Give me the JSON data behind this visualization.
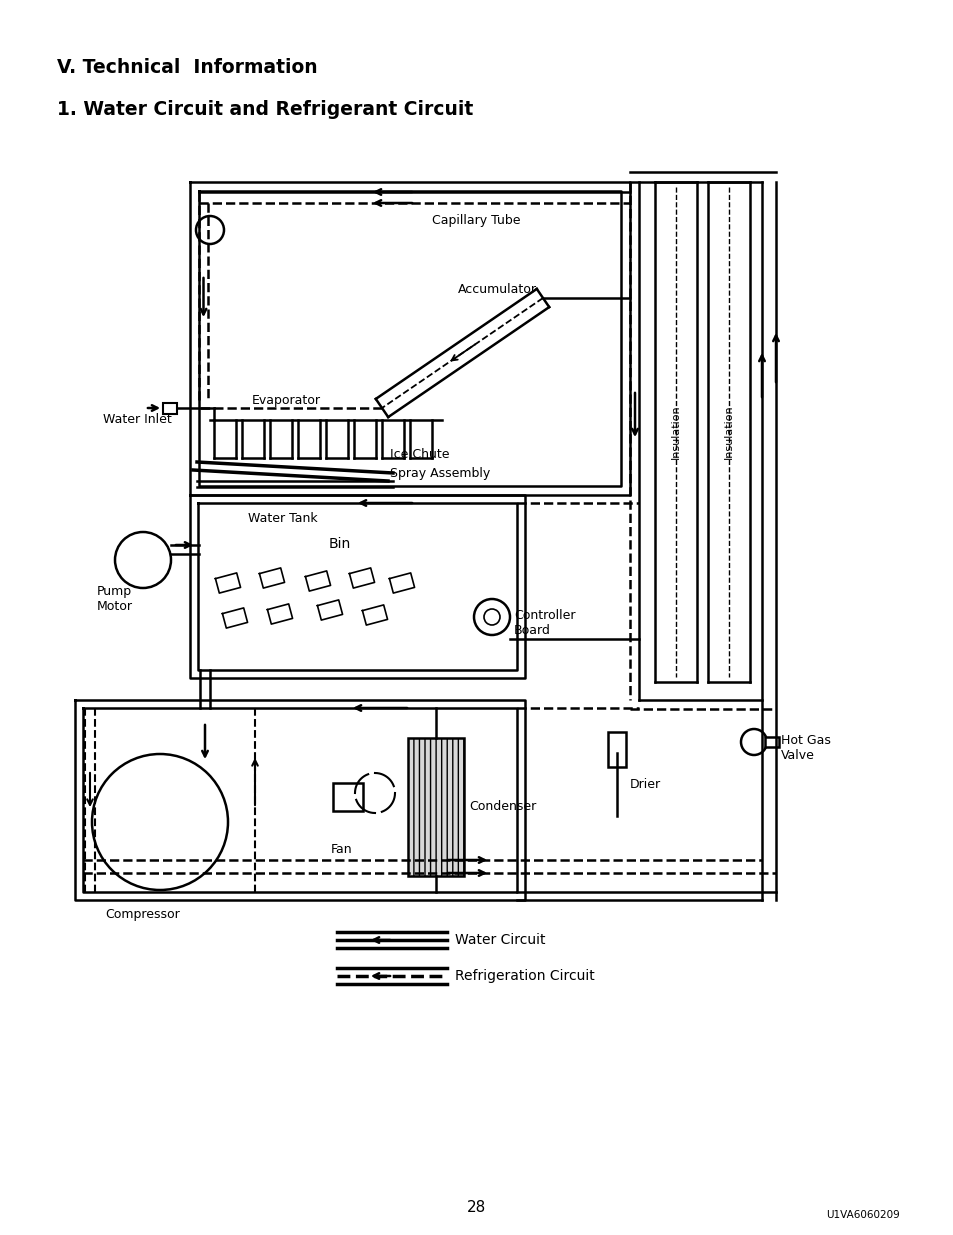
{
  "title1": "V. Technical  Information",
  "title2": "1. Water Circuit and Refrigerant Circuit",
  "bg_color": "#ffffff",
  "line_color": "#000000",
  "page_number": "28",
  "doc_id": "U1VA6060209",
  "labels": {
    "capillary_tube": "Capillary Tube",
    "accumulator": "Accumulator",
    "evaporator": "Evaporator",
    "water_inlet": "Water Inlet",
    "ice_chute": "Ice Chute",
    "spray_assembly": "Spray Assembly",
    "water_tank": "Water Tank",
    "bin": "Bin",
    "controller_board": "Controller\nBoard",
    "insulation1": "Insulation",
    "insulation2": "Insulation",
    "condenser": "Condenser",
    "fan": "Fan",
    "compressor": "Compressor",
    "drier": "Drier",
    "hot_gas_valve": "Hot Gas\nValve",
    "water_circuit": "Water Circuit",
    "refrigeration_circuit": "Refrigeration Circuit",
    "pump_motor": "Pump\nMotor"
  }
}
